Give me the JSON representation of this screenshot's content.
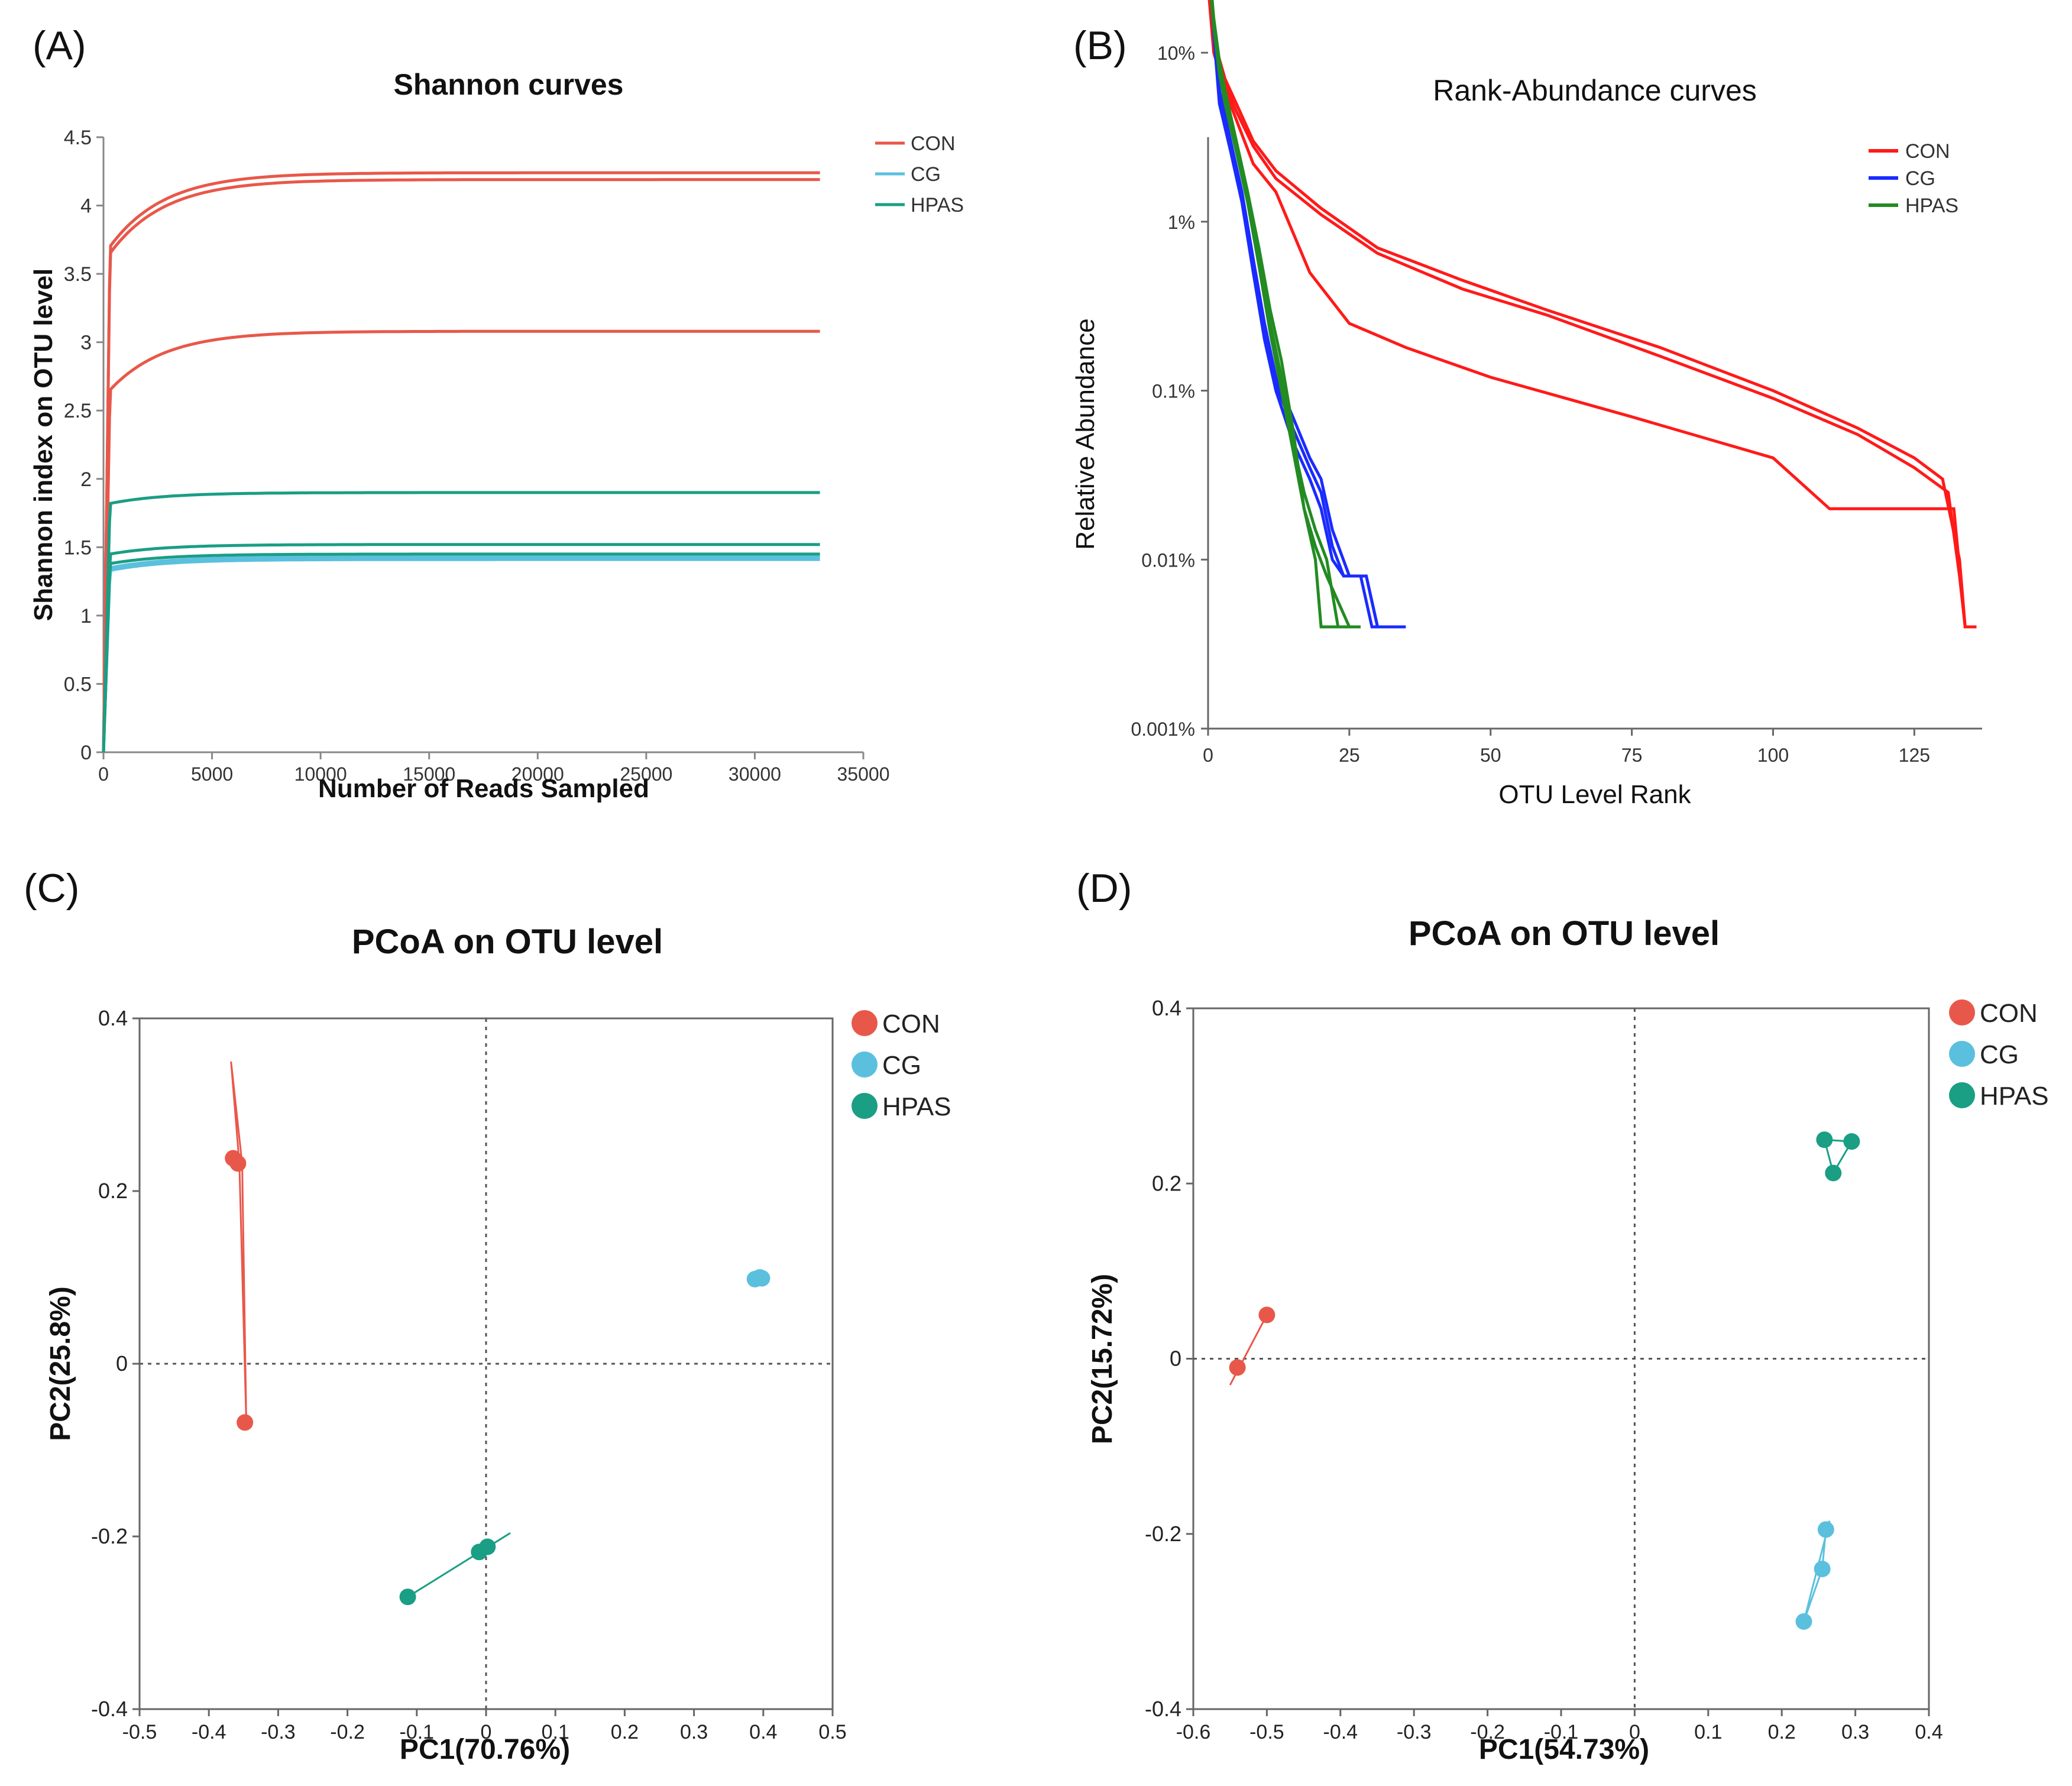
{
  "colors": {
    "con": "#e8584a",
    "cg": "#5bc0de",
    "hpas": "#1a9e84",
    "rank_con": "#ff1a1a",
    "rank_cg": "#1a2bff",
    "rank_hpas": "#228b22"
  },
  "panel_labels": [
    "(A)",
    "(B)",
    "(C)",
    "(D)"
  ],
  "chart_data": [
    {
      "panel": "A",
      "type": "line",
      "title": "Shannon curves",
      "xlabel": "Number of Reads Sampled",
      "ylabel": "Shannon index on OTU level",
      "xlim": [
        0,
        35000
      ],
      "ylim": [
        0,
        4.5
      ],
      "xticks": [
        "0",
        "5000",
        "10000",
        "15000",
        "20000",
        "25000",
        "30000",
        "35000"
      ],
      "yticks": [
        "0",
        "0.5",
        "1",
        "1.5",
        "2",
        "2.5",
        "3",
        "3.5",
        "4",
        "4.5"
      ],
      "legend": [
        "CON",
        "CG",
        "HPAS"
      ],
      "series": [
        {
          "name": "CON",
          "final": 4.24,
          "start": 3.7
        },
        {
          "name": "CON",
          "final": 4.19,
          "start": 3.65
        },
        {
          "name": "CON",
          "final": 3.08,
          "start": 2.65
        },
        {
          "name": "CG",
          "final": 1.43,
          "start": 1.35
        },
        {
          "name": "CG",
          "final": 1.41,
          "start": 1.33
        },
        {
          "name": "HPAS",
          "final": 1.9,
          "start": 1.82
        },
        {
          "name": "HPAS",
          "final": 1.52,
          "start": 1.45
        },
        {
          "name": "HPAS",
          "final": 1.45,
          "start": 1.38
        }
      ]
    },
    {
      "panel": "B",
      "type": "line",
      "title": "Rank-Abundance curves",
      "xlabel": "OTU Level Rank",
      "ylabel": "Relative Abundance",
      "xlim": [
        0,
        137
      ],
      "ylim_log10": [
        -3,
        0.5
      ],
      "xticks": [
        "0",
        "25",
        "50",
        "75",
        "100",
        "125"
      ],
      "yticks": [
        "0.001%",
        "0.01%",
        "0.1%",
        "1%",
        "10%"
      ],
      "legend": [
        "CON",
        "CG",
        "HPAS"
      ],
      "series": [
        {
          "name": "CON",
          "points": [
            [
              0,
              30
            ],
            [
              1,
              12
            ],
            [
              3,
              7
            ],
            [
              5,
              5
            ],
            [
              8,
              3
            ],
            [
              12,
              2
            ],
            [
              20,
              1.2
            ],
            [
              30,
              0.7
            ],
            [
              45,
              0.45
            ],
            [
              60,
              0.3
            ],
            [
              80,
              0.18
            ],
            [
              100,
              0.1
            ],
            [
              115,
              0.06
            ],
            [
              125,
              0.04
            ],
            [
              130,
              0.03
            ],
            [
              133,
              0.01
            ],
            [
              134,
              0.004
            ],
            [
              136,
              0.004
            ]
          ]
        },
        {
          "name": "CON",
          "points": [
            [
              0,
              28
            ],
            [
              1,
              11
            ],
            [
              3,
              6.5
            ],
            [
              5,
              4.5
            ],
            [
              8,
              2.8
            ],
            [
              12,
              1.8
            ],
            [
              20,
              1.1
            ],
            [
              30,
              0.65
            ],
            [
              45,
              0.4
            ],
            [
              60,
              0.28
            ],
            [
              80,
              0.16
            ],
            [
              100,
              0.09
            ],
            [
              115,
              0.055
            ],
            [
              125,
              0.035
            ],
            [
              131,
              0.025
            ],
            [
              133,
              0.008
            ],
            [
              134,
              0.004
            ],
            [
              136,
              0.004
            ]
          ]
        },
        {
          "name": "CON",
          "points": [
            [
              0,
              25
            ],
            [
              1,
              10
            ],
            [
              3,
              6
            ],
            [
              5,
              4
            ],
            [
              8,
              2.2
            ],
            [
              12,
              1.5
            ],
            [
              18,
              0.5
            ],
            [
              25,
              0.25
            ],
            [
              35,
              0.18
            ],
            [
              50,
              0.12
            ],
            [
              75,
              0.07
            ],
            [
              100,
              0.04
            ],
            [
              110,
              0.02
            ],
            [
              125,
              0.02
            ],
            [
              132,
              0.02
            ],
            [
              134,
              0.004
            ],
            [
              136,
              0.004
            ]
          ]
        },
        {
          "name": "CG",
          "points": [
            [
              0,
              45
            ],
            [
              1,
              15
            ],
            [
              2,
              6
            ],
            [
              4,
              3
            ],
            [
              6,
              1.5
            ],
            [
              8,
              0.6
            ],
            [
              10,
              0.25
            ],
            [
              12,
              0.12
            ],
            [
              15,
              0.07
            ],
            [
              18,
              0.04
            ],
            [
              20,
              0.03
            ],
            [
              22,
              0.015
            ],
            [
              25,
              0.008
            ],
            [
              28,
              0.008
            ],
            [
              30,
              0.004
            ],
            [
              34,
              0.004
            ]
          ]
        },
        {
          "name": "CG",
          "points": [
            [
              0,
              42
            ],
            [
              1,
              14
            ],
            [
              2,
              5.5
            ],
            [
              4,
              2.8
            ],
            [
              6,
              1.4
            ],
            [
              8,
              0.55
            ],
            [
              10,
              0.22
            ],
            [
              12,
              0.11
            ],
            [
              15,
              0.06
            ],
            [
              18,
              0.035
            ],
            [
              20,
              0.025
            ],
            [
              22,
              0.012
            ],
            [
              24,
              0.008
            ],
            [
              27,
              0.008
            ],
            [
              29,
              0.004
            ],
            [
              32,
              0.004
            ]
          ]
        },
        {
          "name": "CG",
          "points": [
            [
              0,
              40
            ],
            [
              1,
              13
            ],
            [
              2,
              5
            ],
            [
              4,
              2.6
            ],
            [
              6,
              1.3
            ],
            [
              8,
              0.5
            ],
            [
              10,
              0.2
            ],
            [
              12,
              0.1
            ],
            [
              15,
              0.05
            ],
            [
              18,
              0.03
            ],
            [
              20,
              0.02
            ],
            [
              22,
              0.01
            ],
            [
              24,
              0.008
            ],
            [
              28,
              0.008
            ],
            [
              30,
              0.004
            ],
            [
              35,
              0.004
            ]
          ]
        },
        {
          "name": "HPAS",
          "points": [
            [
              0,
              38
            ],
            [
              1,
              16
            ],
            [
              2,
              9
            ],
            [
              3,
              6
            ],
            [
              5,
              3
            ],
            [
              7,
              1.5
            ],
            [
              9,
              0.7
            ],
            [
              11,
              0.3
            ],
            [
              13,
              0.15
            ],
            [
              15,
              0.06
            ],
            [
              17,
              0.02
            ],
            [
              19,
              0.01
            ],
            [
              20,
              0.004
            ],
            [
              24,
              0.004
            ]
          ]
        },
        {
          "name": "HPAS",
          "points": [
            [
              0,
              36
            ],
            [
              1,
              15
            ],
            [
              2,
              8
            ],
            [
              3,
              5.5
            ],
            [
              5,
              2.8
            ],
            [
              7,
              1.4
            ],
            [
              9,
              0.6
            ],
            [
              11,
              0.25
            ],
            [
              13,
              0.12
            ],
            [
              15,
              0.05
            ],
            [
              17,
              0.025
            ],
            [
              19,
              0.015
            ],
            [
              21,
              0.01
            ],
            [
              23,
              0.004
            ],
            [
              26,
              0.004
            ]
          ]
        },
        {
          "name": "HPAS",
          "points": [
            [
              0,
              34
            ],
            [
              1,
              14
            ],
            [
              2,
              7.5
            ],
            [
              3,
              5
            ],
            [
              5,
              2.6
            ],
            [
              7,
              1.3
            ],
            [
              9,
              0.55
            ],
            [
              11,
              0.22
            ],
            [
              13,
              0.1
            ],
            [
              15,
              0.045
            ],
            [
              17,
              0.02
            ],
            [
              19,
              0.012
            ],
            [
              21,
              0.008
            ],
            [
              25,
              0.004
            ],
            [
              27,
              0.004
            ]
          ]
        }
      ]
    },
    {
      "panel": "C",
      "type": "scatter",
      "title": "PCoA on OTU level",
      "xlabel": "PC1(70.76%)",
      "ylabel": "PC2(25.8%)",
      "xlim": [
        -0.5,
        0.5
      ],
      "ylim": [
        -0.4,
        0.4
      ],
      "xticks": [
        "-0.5",
        "-0.4",
        "-0.3",
        "-0.2",
        "-0.1",
        "0",
        "0.1",
        "0.2",
        "0.3",
        "0.4",
        "0.5"
      ],
      "yticks": [
        "-0.4",
        "-0.2",
        "0",
        "0.2",
        "0.4"
      ],
      "legend": [
        "CON",
        "CG",
        "HPAS"
      ],
      "groups": [
        {
          "name": "CON",
          "points": [
            [
              -0.365,
              0.238
            ],
            [
              -0.358,
              0.232
            ],
            [
              -0.348,
              -0.068
            ]
          ],
          "hull": [
            [
              -0.368,
              0.35
            ],
            [
              -0.352,
              0.232
            ],
            [
              -0.346,
              -0.068
            ],
            [
              -0.356,
              0.232
            ]
          ]
        },
        {
          "name": "CG",
          "points": [
            [
              0.388,
              0.098
            ],
            [
              0.395,
              0.1
            ],
            [
              0.398,
              0.099
            ]
          ],
          "hull": [
            [
              0.385,
              0.098
            ],
            [
              0.4,
              0.101
            ],
            [
              0.39,
              0.097
            ]
          ]
        },
        {
          "name": "HPAS",
          "points": [
            [
              -0.113,
              -0.27
            ],
            [
              -0.01,
              -0.218
            ],
            [
              0.002,
              -0.212
            ]
          ],
          "hull": [
            [
              -0.113,
              -0.27
            ],
            [
              0.035,
              -0.196
            ]
          ]
        }
      ]
    },
    {
      "panel": "D",
      "type": "scatter",
      "title": "PCoA on OTU level",
      "xlabel": "PC1(54.73%)",
      "ylabel": "PC2(15.72%)",
      "xlim": [
        -0.6,
        0.4
      ],
      "ylim": [
        -0.4,
        0.4
      ],
      "xticks": [
        "-0.6",
        "-0.5",
        "-0.4",
        "-0.3",
        "-0.2",
        "-0.1",
        "0",
        "0.1",
        "0.2",
        "0.3",
        "0.4"
      ],
      "yticks": [
        "-0.4",
        "-0.2",
        "0",
        "0.2",
        "0.4"
      ],
      "legend": [
        "CON",
        "CG",
        "HPAS"
      ],
      "groups": [
        {
          "name": "CON",
          "points": [
            [
              -0.54,
              -0.01
            ],
            [
              -0.5,
              0.05
            ]
          ],
          "hull": [
            [
              -0.55,
              -0.03
            ],
            [
              -0.5,
              0.05
            ]
          ]
        },
        {
          "name": "CG",
          "points": [
            [
              0.26,
              -0.195
            ],
            [
              0.255,
              -0.24
            ],
            [
              0.23,
              -0.3
            ]
          ],
          "hull": [
            [
              0.265,
              -0.185
            ],
            [
              0.23,
              -0.3
            ],
            [
              0.255,
              -0.24
            ],
            [
              0.26,
              -0.195
            ]
          ]
        },
        {
          "name": "HPAS",
          "points": [
            [
              0.258,
              0.25
            ],
            [
              0.295,
              0.248
            ],
            [
              0.27,
              0.212
            ]
          ],
          "hull": [
            [
              0.258,
              0.25
            ],
            [
              0.295,
              0.248
            ],
            [
              0.27,
              0.212
            ]
          ]
        }
      ]
    }
  ]
}
